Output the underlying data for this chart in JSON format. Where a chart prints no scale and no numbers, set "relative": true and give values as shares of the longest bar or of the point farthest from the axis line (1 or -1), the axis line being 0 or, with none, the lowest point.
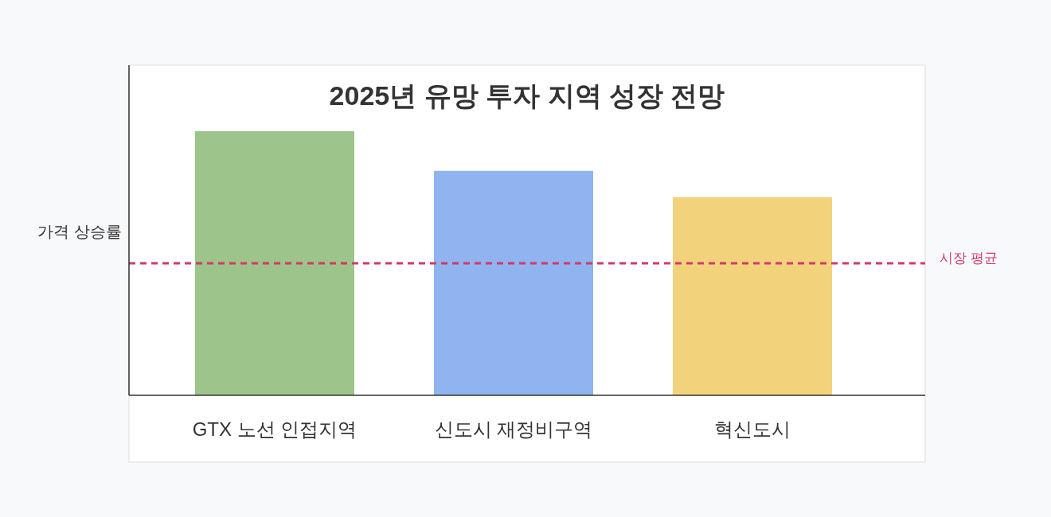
{
  "chart_data": {
    "type": "bar",
    "title": "2025년 유망 투자 지역 성장 전망",
    "ylabel": "가격 상승률",
    "relative": true,
    "categories": [
      "GTX 노선 인접지역",
      "신도시 재정비구역",
      "혁신도시"
    ],
    "values": [
      1,
      0.85,
      0.75
    ],
    "colors": [
      "#9dc48b",
      "#8fb4ef",
      "#f2d37c"
    ],
    "ref_lines": [
      {
        "axis": "y",
        "value": 0.5,
        "label": "시장 평균",
        "color": "#d4396a",
        "line_style": "dashed"
      }
    ]
  }
}
